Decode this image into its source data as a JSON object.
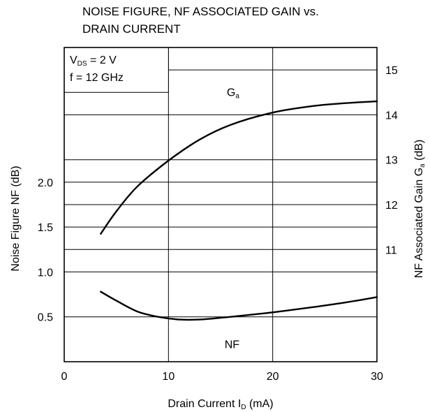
{
  "chart_data": {
    "type": "line",
    "title_line1": "NOISE FIGURE, NF ASSOCIATED GAIN vs.",
    "title_line2": "DRAIN CURRENT",
    "xlabel": {
      "main": "Drain Current  I",
      "sub": "D",
      "unit": " (mA)"
    },
    "ylabel_left": "Noise Figure  NF (dB)",
    "ylabel_right": {
      "main": "NF Associated Gain  G",
      "sub": "a",
      "unit": " (dB)"
    },
    "xlim": [
      0,
      30
    ],
    "x_ticks": [
      "0",
      "10",
      "20",
      "30"
    ],
    "y_left_ticks": [
      {
        "value": 0.5,
        "label": "0.5"
      },
      {
        "value": 1.0,
        "label": "1.0"
      },
      {
        "value": 1.5,
        "label": "1.5"
      },
      {
        "value": 2.0,
        "label": "2.0"
      }
    ],
    "y_left_lim": [
      0,
      3.5
    ],
    "y_right_ticks": [
      {
        "value": 11,
        "label": "11"
      },
      {
        "value": 12,
        "label": "12"
      },
      {
        "value": 13,
        "label": "13"
      },
      {
        "value": 14,
        "label": "14"
      },
      {
        "value": 15,
        "label": "15"
      }
    ],
    "y_right_lim": [
      8.5,
      15.5
    ],
    "grid": true,
    "conditions": {
      "vds": {
        "main": "V",
        "sub": "DS",
        "rest": " = 2 V"
      },
      "freq": "f = 12 GHz"
    },
    "series": [
      {
        "name": "Ga",
        "label": {
          "main": "G",
          "sub": "a"
        },
        "axis": "right",
        "x": [
          3.5,
          5,
          7,
          10,
          13,
          16,
          20,
          24,
          27,
          30
        ],
        "y": [
          11.35,
          11.85,
          12.4,
          12.98,
          13.45,
          13.78,
          14.05,
          14.2,
          14.26,
          14.3
        ]
      },
      {
        "name": "NF",
        "label": {
          "main": "NF",
          "sub": ""
        },
        "axis": "left",
        "x": [
          3.5,
          5,
          7,
          9,
          11,
          13,
          16,
          20,
          24,
          27,
          30
        ],
        "y": [
          0.78,
          0.68,
          0.56,
          0.5,
          0.47,
          0.47,
          0.5,
          0.55,
          0.61,
          0.66,
          0.72
        ]
      }
    ]
  }
}
